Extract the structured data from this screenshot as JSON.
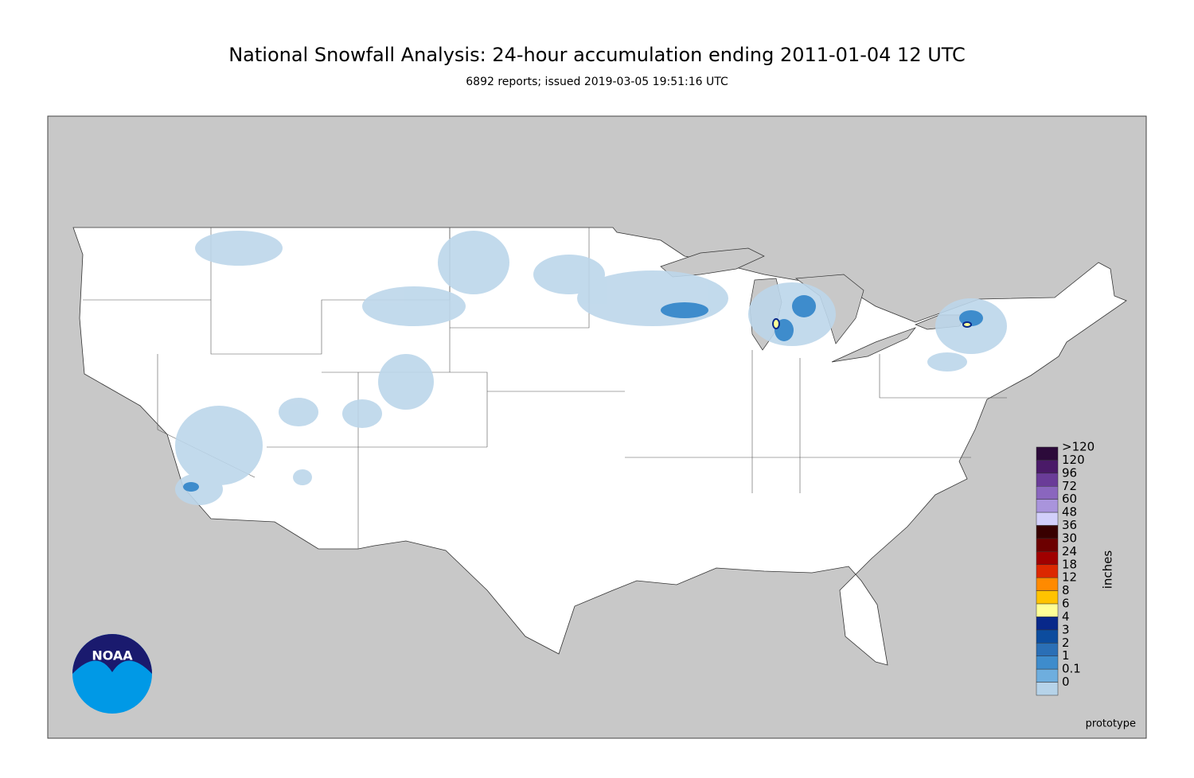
{
  "header": {
    "title": "National Snowfall Analysis: 24-hour accumulation ending 2011-01-04 12 UTC",
    "subtitle": "6892 reports; issued 2019-03-05 19:51:16 UTC"
  },
  "legend": {
    "unit": "inches",
    "items": [
      {
        "label": ">120",
        "color": "#2c0a3a"
      },
      {
        "label": "120",
        "color": "#4a1a68"
      },
      {
        "label": "96",
        "color": "#6a3c98"
      },
      {
        "label": "72",
        "color": "#8a66be"
      },
      {
        "label": "60",
        "color": "#a994dc"
      },
      {
        "label": "48",
        "color": "#d2cffa"
      },
      {
        "label": "36",
        "color": "#380000"
      },
      {
        "label": "30",
        "color": "#6c0000"
      },
      {
        "label": "24",
        "color": "#a00000"
      },
      {
        "label": "18",
        "color": "#dc2800"
      },
      {
        "label": "12",
        "color": "#ff8a00"
      },
      {
        "label": "8",
        "color": "#ffc300"
      },
      {
        "label": "6",
        "color": "#ffff96"
      },
      {
        "label": "4",
        "color": "#08288a"
      },
      {
        "label": "3",
        "color": "#0c4c9e"
      },
      {
        "label": "2",
        "color": "#2a6fb6"
      },
      {
        "label": "1",
        "color": "#3e8ccc"
      },
      {
        "label": "0.1",
        "color": "#6eaede"
      },
      {
        "label": "0",
        "color": "#b6d3e9"
      }
    ]
  },
  "footer": {
    "note": "prototype"
  },
  "logo": {
    "text": "NOAA"
  }
}
